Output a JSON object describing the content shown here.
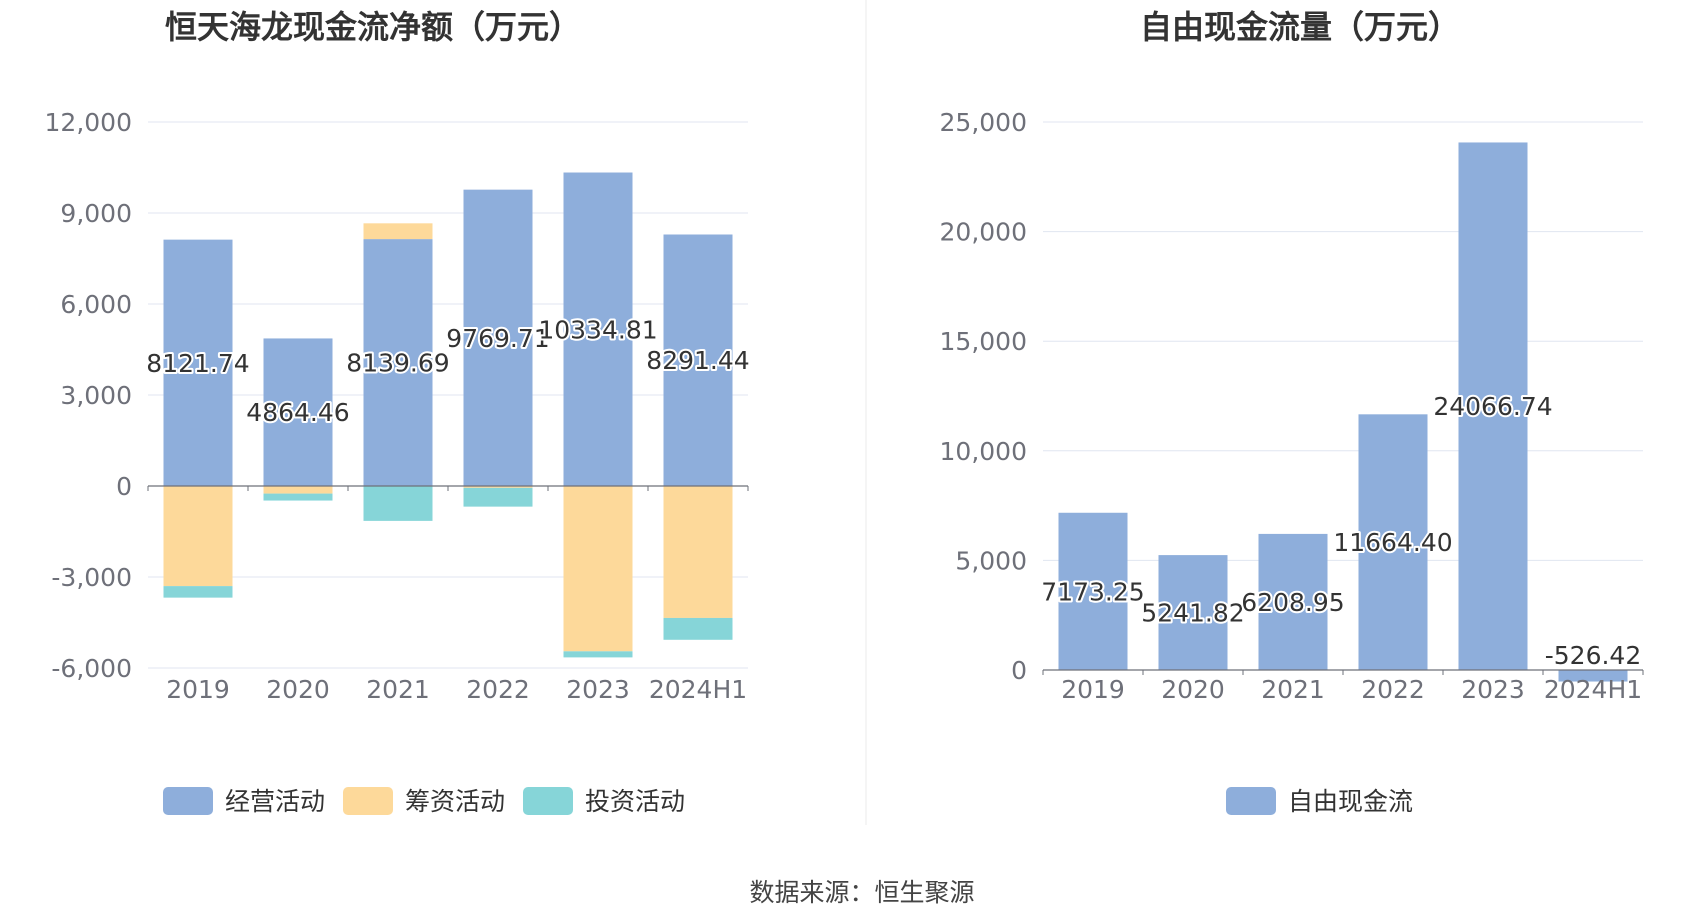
{
  "charts": [
    {
      "title": "恒天海龙现金流净额（万元）",
      "chart_data": {
        "type": "bar",
        "stacked": true,
        "categories": [
          "2019",
          "2020",
          "2021",
          "2022",
          "2023",
          "2024H1"
        ],
        "ylim": [
          -6000,
          12000
        ],
        "yticks": [
          12000,
          9000,
          6000,
          3000,
          0,
          -3000,
          -6000
        ],
        "ytick_labels": [
          "12,000",
          "9,000",
          "6,000",
          "3,000",
          "0",
          "-3,000",
          "-6,000"
        ],
        "grid": true,
        "legend_position": "bottom",
        "series": [
          {
            "name": "经营活动",
            "color": "#8eaedb",
            "values": [
              8121.74,
              4864.46,
              8139.69,
              9769.71,
              10334.81,
              8291.44
            ],
            "labels": [
              "8121.74",
              "4864.46",
              "8139.69",
              "9769.71",
              "10334.81",
              "8291.44"
            ]
          },
          {
            "name": "筹资活动",
            "color": "#fdd99a",
            "values": [
              -3300,
              -250,
              520,
              -60,
              -5450,
              -4350
            ]
          },
          {
            "name": "投资活动",
            "color": "#86d5d8",
            "values": [
              -380,
              -230,
              -1150,
              -620,
              -200,
              -720
            ]
          }
        ]
      }
    },
    {
      "title": "自由现金流量（万元）",
      "chart_data": {
        "type": "bar",
        "categories": [
          "2019",
          "2020",
          "2021",
          "2022",
          "2023",
          "2024H1"
        ],
        "ylim": [
          0,
          25000
        ],
        "yticks": [
          25000,
          20000,
          15000,
          10000,
          5000,
          0
        ],
        "ytick_labels": [
          "25,000",
          "20,000",
          "15,000",
          "10,000",
          "5,000",
          "0"
        ],
        "grid": true,
        "legend_position": "bottom",
        "series": [
          {
            "name": "自由现金流",
            "color": "#8eaedb",
            "values": [
              7173.25,
              5241.82,
              6208.95,
              11664.4,
              24066.74,
              -526.42
            ],
            "labels": [
              "7173.25",
              "5241.82",
              "6208.95",
              "11664.40",
              "24066.74",
              "-526.42"
            ]
          }
        ]
      }
    }
  ],
  "source": "数据来源：恒生聚源"
}
